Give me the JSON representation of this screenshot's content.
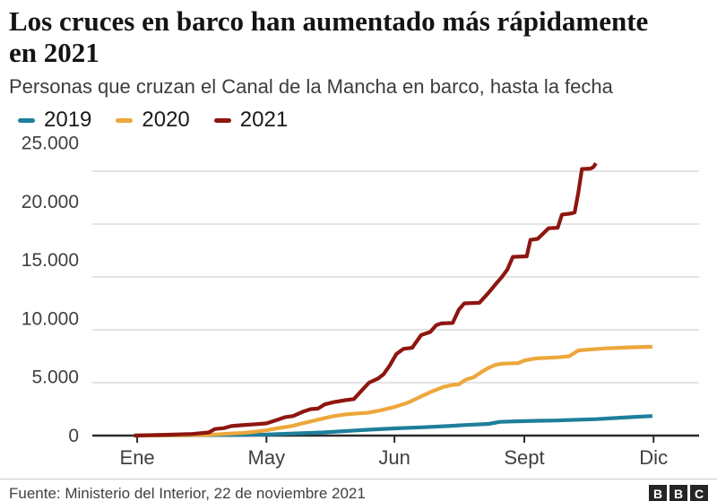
{
  "header": {
    "title": "Los cruces en barco han aumentado más rápidamente en 2021",
    "subtitle": "Personas que cruzan el Canal de la Mancha en barco, hasta la fecha"
  },
  "footer": {
    "source": "Fuente: Ministerio del Interior, 22 de noviembre 2021",
    "logo_letters": [
      "B",
      "B",
      "C"
    ]
  },
  "colors": {
    "series_2019": "#1E7F9B",
    "series_2020": "#EDA73C",
    "series_2021": "#8E1610",
    "grid": "#dcdcdc",
    "axis": "#2b2b2b",
    "tick_text": "#404040"
  },
  "chart_data": {
    "type": "line",
    "title": "Los cruces en barco han aumentado más rápidamente en 2021",
    "subtitle": "Personas que cruzan el Canal de la Mancha en barco, hasta la fecha",
    "xlabel": "",
    "ylabel": "",
    "ylim": [
      0,
      25000
    ],
    "grid": "horizontal",
    "legend_position": "top",
    "yticks": [
      {
        "value": 0,
        "label": "0"
      },
      {
        "value": 5000,
        "label": "5.000"
      },
      {
        "value": 10000,
        "label": "10.000"
      },
      {
        "value": 15000,
        "label": "15.000"
      },
      {
        "value": 20000,
        "label": "20.000"
      },
      {
        "value": 25000,
        "label": "25.000"
      }
    ],
    "xticks": [
      {
        "pos": 0.074,
        "label": "Ene"
      },
      {
        "pos": 0.287,
        "label": "May"
      },
      {
        "pos": 0.498,
        "label": "Jun"
      },
      {
        "pos": 0.712,
        "label": "Sept"
      },
      {
        "pos": 0.925,
        "label": "Dic"
      }
    ],
    "series": [
      {
        "name": "2019",
        "color": "#1E7F9B",
        "final_value": 1850,
        "points": [
          [
            0.069,
            0
          ],
          [
            0.217,
            50
          ],
          [
            0.287,
            100
          ],
          [
            0.335,
            200
          ],
          [
            0.38,
            300
          ],
          [
            0.424,
            450
          ],
          [
            0.454,
            550
          ],
          [
            0.498,
            680
          ],
          [
            0.542,
            780
          ],
          [
            0.586,
            900
          ],
          [
            0.616,
            1000
          ],
          [
            0.653,
            1100
          ],
          [
            0.672,
            1300
          ],
          [
            0.697,
            1350
          ],
          [
            0.734,
            1400
          ],
          [
            0.764,
            1420
          ],
          [
            0.801,
            1500
          ],
          [
            0.83,
            1550
          ],
          [
            0.86,
            1650
          ],
          [
            0.889,
            1750
          ],
          [
            0.923,
            1850
          ]
        ]
      },
      {
        "name": "2020",
        "color": "#EDA73C",
        "final_value": 8400,
        "points": [
          [
            0.069,
            0
          ],
          [
            0.188,
            60
          ],
          [
            0.202,
            100
          ],
          [
            0.217,
            150
          ],
          [
            0.232,
            200
          ],
          [
            0.247,
            250
          ],
          [
            0.266,
            350
          ],
          [
            0.287,
            500
          ],
          [
            0.306,
            700
          ],
          [
            0.328,
            900
          ],
          [
            0.35,
            1200
          ],
          [
            0.372,
            1500
          ],
          [
            0.394,
            1800
          ],
          [
            0.417,
            2000
          ],
          [
            0.439,
            2100
          ],
          [
            0.454,
            2150
          ],
          [
            0.476,
            2400
          ],
          [
            0.498,
            2700
          ],
          [
            0.52,
            3100
          ],
          [
            0.542,
            3700
          ],
          [
            0.561,
            4200
          ],
          [
            0.579,
            4600
          ],
          [
            0.594,
            4800
          ],
          [
            0.604,
            4850
          ],
          [
            0.616,
            5300
          ],
          [
            0.628,
            5500
          ],
          [
            0.641,
            6000
          ],
          [
            0.653,
            6400
          ],
          [
            0.665,
            6700
          ],
          [
            0.675,
            6800
          ],
          [
            0.702,
            6850
          ],
          [
            0.712,
            7100
          ],
          [
            0.731,
            7300
          ],
          [
            0.749,
            7350
          ],
          [
            0.767,
            7400
          ],
          [
            0.786,
            7500
          ],
          [
            0.801,
            8050
          ],
          [
            0.823,
            8150
          ],
          [
            0.845,
            8250
          ],
          [
            0.867,
            8300
          ],
          [
            0.889,
            8350
          ],
          [
            0.923,
            8400
          ]
        ]
      },
      {
        "name": "2021",
        "color": "#8E1610",
        "final_value": 25750,
        "points": [
          [
            0.069,
            0
          ],
          [
            0.121,
            80
          ],
          [
            0.165,
            150
          ],
          [
            0.192,
            300
          ],
          [
            0.202,
            620
          ],
          [
            0.217,
            700
          ],
          [
            0.229,
            900
          ],
          [
            0.247,
            980
          ],
          [
            0.269,
            1080
          ],
          [
            0.287,
            1150
          ],
          [
            0.303,
            1450
          ],
          [
            0.318,
            1750
          ],
          [
            0.331,
            1850
          ],
          [
            0.347,
            2250
          ],
          [
            0.36,
            2500
          ],
          [
            0.372,
            2550
          ],
          [
            0.383,
            2950
          ],
          [
            0.397,
            3150
          ],
          [
            0.417,
            3350
          ],
          [
            0.431,
            3450
          ],
          [
            0.443,
            4200
          ],
          [
            0.456,
            5000
          ],
          [
            0.471,
            5400
          ],
          [
            0.48,
            5800
          ],
          [
            0.49,
            6600
          ],
          [
            0.501,
            7700
          ],
          [
            0.513,
            8200
          ],
          [
            0.527,
            8300
          ],
          [
            0.542,
            9500
          ],
          [
            0.557,
            9800
          ],
          [
            0.567,
            10450
          ],
          [
            0.575,
            10600
          ],
          [
            0.594,
            10650
          ],
          [
            0.604,
            11900
          ],
          [
            0.613,
            12500
          ],
          [
            0.638,
            12560
          ],
          [
            0.653,
            13500
          ],
          [
            0.663,
            14200
          ],
          [
            0.675,
            15000
          ],
          [
            0.684,
            15700
          ],
          [
            0.693,
            16900
          ],
          [
            0.716,
            16950
          ],
          [
            0.722,
            18500
          ],
          [
            0.734,
            18600
          ],
          [
            0.743,
            19100
          ],
          [
            0.752,
            19600
          ],
          [
            0.767,
            19650
          ],
          [
            0.774,
            20900
          ],
          [
            0.789,
            21000
          ],
          [
            0.795,
            21100
          ],
          [
            0.801,
            23000
          ],
          [
            0.807,
            25200
          ],
          [
            0.821,
            25250
          ],
          [
            0.826,
            25400
          ],
          [
            0.83,
            25750
          ]
        ]
      }
    ]
  }
}
